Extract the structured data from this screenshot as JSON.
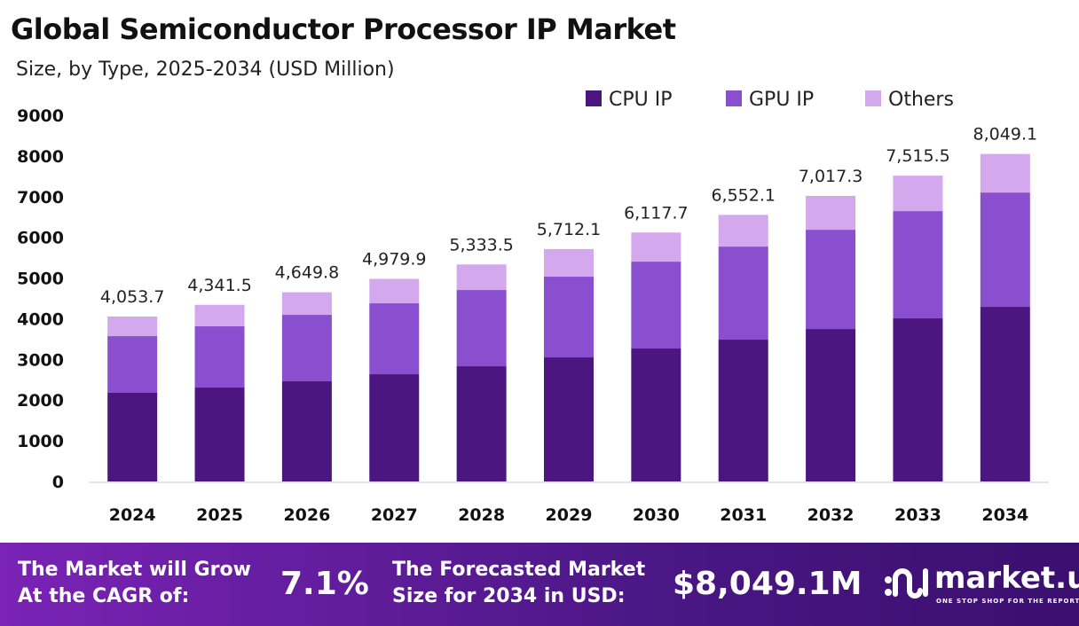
{
  "chart_data": {
    "type": "bar",
    "stacked": true,
    "title": "Global Semiconductor Processor IP Market",
    "subtitle": "Size, by Type, 2025-2034 (USD Million)",
    "categories": [
      "2024",
      "2025",
      "2026",
      "2027",
      "2028",
      "2029",
      "2030",
      "2031",
      "2032",
      "2033",
      "2034"
    ],
    "series": [
      {
        "name": "CPU IP",
        "color": "#4b1680",
        "values": [
          2179,
          2309,
          2462,
          2636,
          2832,
          3050,
          3268,
          3486,
          3747,
          4009,
          4292
        ]
      },
      {
        "name": "GPU IP",
        "color": "#8a4fcf",
        "values": [
          1394,
          1504,
          1634,
          1743,
          1874,
          1983,
          2135,
          2287,
          2440,
          2636,
          2810
        ]
      },
      {
        "name": "Others",
        "color": "#d4a8ec",
        "values": [
          480.7,
          528.5,
          553.8,
          600.9,
          627.5,
          679.1,
          714.7,
          779.1,
          830.3,
          870.5,
          947.1
        ]
      }
    ],
    "totals": [
      4053.7,
      4341.5,
      4649.8,
      4979.9,
      5333.5,
      5712.1,
      6117.7,
      6552.1,
      7017.3,
      7515.5,
      8049.1
    ],
    "total_labels": [
      "4,053.7",
      "4,341.5",
      "4,649.8",
      "4,979.9",
      "5,333.5",
      "5,712.1",
      "6,117.7",
      "6,552.1",
      "7,017.3",
      "7,515.5",
      "8,049.1"
    ],
    "yticks": [
      0,
      1000,
      2000,
      3000,
      4000,
      5000,
      6000,
      7000,
      8000,
      9000
    ],
    "ylim": [
      0,
      9000
    ],
    "grid": false,
    "legend_position": "top-right"
  },
  "footer": {
    "cagr_label": "The Market will Grow At the CAGR of:",
    "cagr_value": "7.1%",
    "forecast_label": "The Forecasted Market Size for 2034 in USD:",
    "forecast_value": "$8,049.1M",
    "brand": "market.us",
    "tagline": "ONE STOP SHOP FOR THE REPORTS"
  }
}
